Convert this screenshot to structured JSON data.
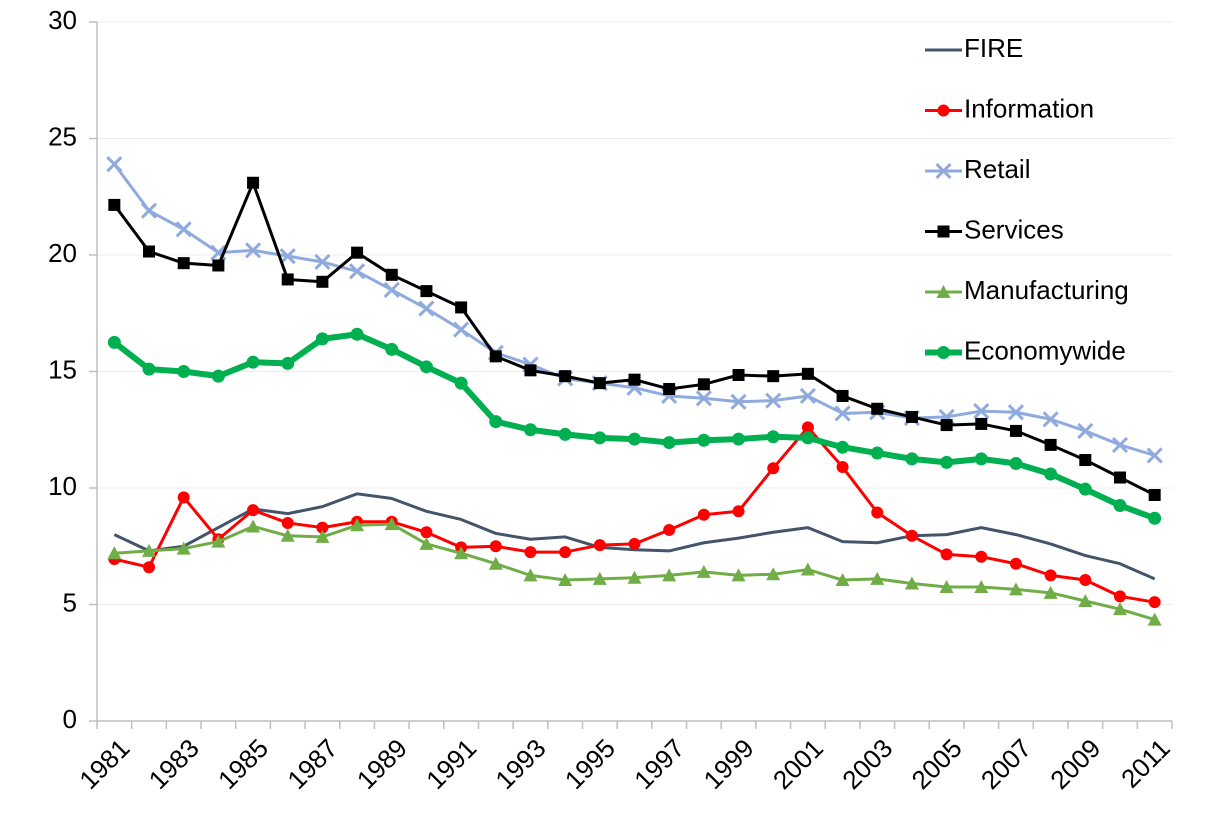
{
  "chart_data": {
    "type": "line",
    "categories": [
      "1981",
      null,
      "1983",
      null,
      "1985",
      null,
      "1987",
      null,
      "1989",
      null,
      "1991",
      null,
      "1993",
      null,
      "1995",
      null,
      "1997",
      null,
      "1999",
      null,
      "2001",
      null,
      "2003",
      null,
      "2005",
      null,
      "2007",
      null,
      "2009",
      null,
      "2011"
    ],
    "ylim": [
      0,
      30
    ],
    "yticks": [
      0,
      5,
      10,
      15,
      20,
      25,
      30
    ],
    "grid": true,
    "legend": "right",
    "series": [
      {
        "name": "FIRE",
        "color": "#44546a",
        "marker": "none",
        "width": 3,
        "values": [
          8.0,
          7.3,
          7.5,
          8.3,
          9.1,
          8.9,
          9.2,
          9.75,
          9.55,
          9.0,
          8.65,
          8.05,
          7.8,
          7.9,
          7.45,
          7.35,
          7.3,
          7.65,
          7.85,
          8.1,
          8.3,
          7.7,
          7.65,
          7.95,
          8.0,
          8.3,
          8.0,
          7.6,
          7.1,
          6.75,
          6.1
        ]
      },
      {
        "name": "Information",
        "color": "#ff0000",
        "marker": "circle",
        "width": 3,
        "values": [
          6.95,
          6.6,
          9.6,
          7.8,
          9.05,
          8.5,
          8.3,
          8.55,
          8.55,
          8.1,
          7.45,
          7.5,
          7.25,
          7.25,
          7.55,
          7.6,
          8.2,
          8.85,
          9.0,
          10.85,
          12.6,
          10.9,
          8.95,
          7.95,
          7.15,
          7.05,
          6.75,
          6.25,
          6.05,
          5.35,
          5.1
        ]
      },
      {
        "name": "Retail",
        "color": "#8faadc",
        "marker": "x",
        "width": 3,
        "values": [
          23.9,
          21.9,
          21.1,
          20.1,
          20.2,
          19.95,
          19.7,
          19.3,
          18.5,
          17.7,
          16.8,
          15.8,
          15.3,
          14.7,
          14.5,
          14.3,
          13.95,
          13.85,
          13.7,
          13.75,
          13.95,
          13.2,
          13.25,
          13.0,
          13.05,
          13.3,
          13.25,
          12.95,
          12.45,
          11.85,
          11.4
        ]
      },
      {
        "name": "Services",
        "color": "#000000",
        "marker": "square",
        "width": 3,
        "values": [
          22.15,
          20.15,
          19.65,
          19.55,
          23.1,
          18.95,
          18.85,
          20.1,
          19.15,
          18.45,
          17.75,
          15.65,
          15.05,
          14.8,
          14.5,
          14.65,
          14.25,
          14.45,
          14.85,
          14.8,
          14.9,
          13.95,
          13.4,
          13.05,
          12.7,
          12.75,
          12.45,
          11.85,
          11.2,
          10.45,
          9.7
        ]
      },
      {
        "name": "Manufacturing",
        "color": "#70ad47",
        "marker": "triangle",
        "width": 3,
        "values": [
          7.2,
          7.3,
          7.4,
          7.7,
          8.35,
          7.95,
          7.9,
          8.4,
          8.45,
          7.6,
          7.2,
          6.75,
          6.25,
          6.05,
          6.1,
          6.15,
          6.25,
          6.4,
          6.25,
          6.3,
          6.5,
          6.05,
          6.1,
          5.9,
          5.75,
          5.75,
          5.65,
          5.5,
          5.15,
          4.8,
          4.35
        ]
      },
      {
        "name": "Economywide",
        "color": "#00b050",
        "marker": "circle",
        "width": 6,
        "values": [
          16.25,
          15.1,
          15.0,
          14.8,
          15.4,
          15.35,
          16.4,
          16.6,
          15.95,
          15.2,
          14.5,
          12.85,
          12.5,
          12.3,
          12.15,
          12.1,
          11.95,
          12.05,
          12.1,
          12.2,
          12.15,
          11.75,
          11.5,
          11.25,
          11.1,
          11.25,
          11.05,
          10.6,
          9.95,
          9.25,
          8.7
        ]
      }
    ]
  }
}
